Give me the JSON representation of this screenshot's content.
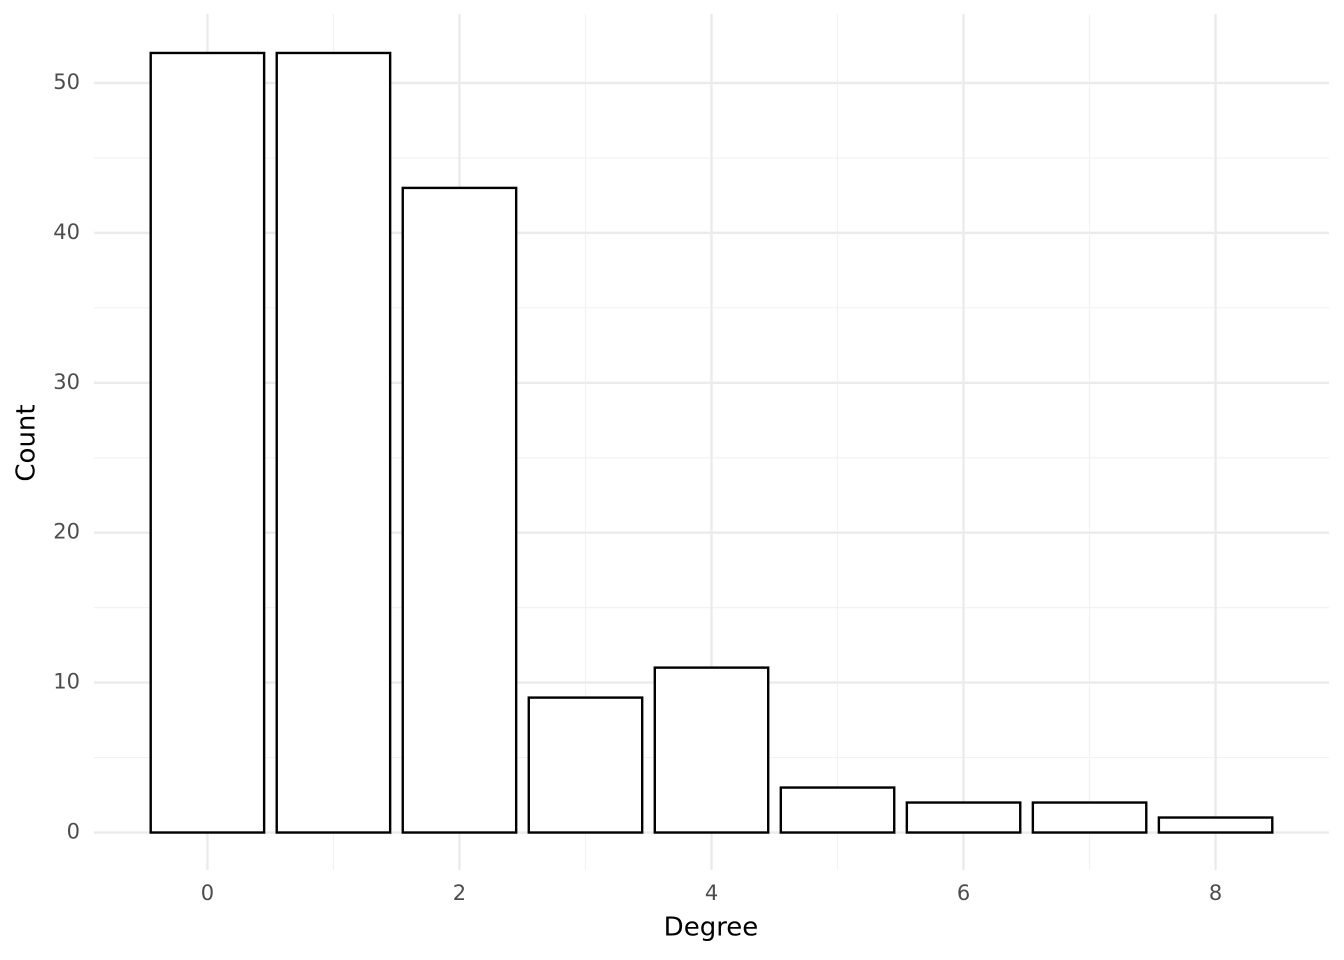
{
  "chart_data": {
    "type": "bar",
    "x_label": "Degree",
    "y_label": "Count",
    "x": [
      0,
      1,
      2,
      3,
      4,
      5,
      6,
      7,
      8
    ],
    "values": [
      52,
      52,
      43,
      9,
      11,
      3,
      2,
      2,
      1
    ],
    "color": "#ffffff",
    "edgecolor": "#000000",
    "xlim": [
      -0.9,
      8.9
    ],
    "xticks": [
      0,
      2,
      4,
      6,
      8
    ],
    "xminor": [
      1,
      3,
      5,
      7
    ],
    "ylim": [
      -2.5,
      54.6
    ],
    "yticks": [
      0,
      10,
      20,
      30,
      40,
      50
    ],
    "yminor": [
      5,
      15,
      25,
      35,
      45
    ],
    "grid": true
  }
}
